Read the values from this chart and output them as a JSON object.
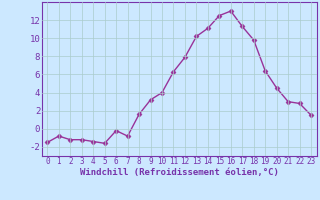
{
  "x": [
    0,
    1,
    2,
    3,
    4,
    5,
    6,
    7,
    8,
    9,
    10,
    11,
    12,
    13,
    14,
    15,
    16,
    17,
    18,
    19,
    20,
    21,
    22,
    23
  ],
  "y": [
    -1.5,
    -0.8,
    -1.2,
    -1.2,
    -1.4,
    -1.6,
    -0.2,
    -0.8,
    1.6,
    3.2,
    4.0,
    6.3,
    7.9,
    10.2,
    11.1,
    12.5,
    13.0,
    11.3,
    9.8,
    6.4,
    4.5,
    3.0,
    2.8,
    1.5
  ],
  "line_color": "#993399",
  "marker": "D",
  "marker_size": 2.5,
  "xlabel": "Windchill (Refroidissement éolien,°C)",
  "xlim": [
    -0.5,
    23.5
  ],
  "ylim": [
    -3,
    14
  ],
  "yticks": [
    -2,
    0,
    2,
    4,
    6,
    8,
    10,
    12
  ],
  "xticks": [
    0,
    1,
    2,
    3,
    4,
    5,
    6,
    7,
    8,
    9,
    10,
    11,
    12,
    13,
    14,
    15,
    16,
    17,
    18,
    19,
    20,
    21,
    22,
    23
  ],
  "background_color": "#cce8ff",
  "grid_color": "#aacccc",
  "tick_color": "#7733aa",
  "spine_color": "#7733aa"
}
